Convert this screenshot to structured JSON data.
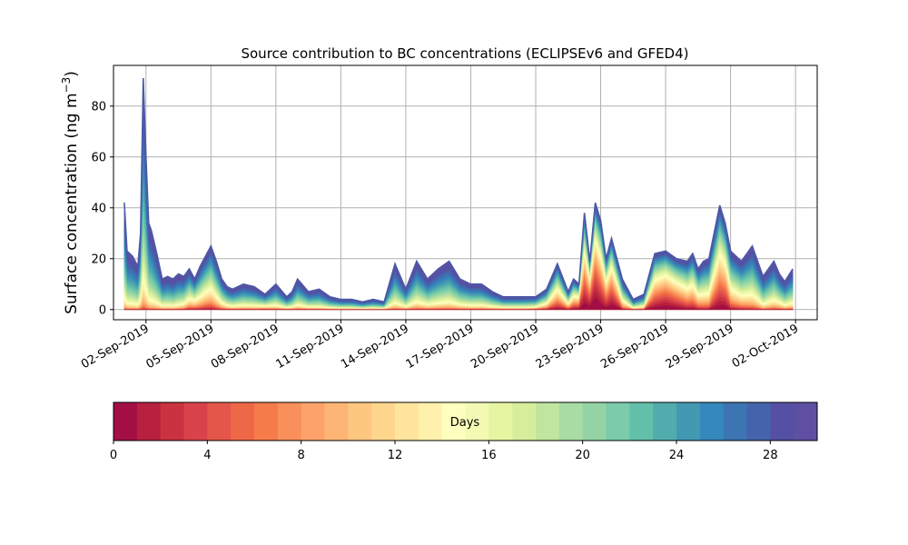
{
  "chart_data": {
    "type": "area",
    "title": "Source contribution to BC concentrations (ECLIPSEv6 and GFED4)",
    "ylabel_main": "Surface concentration (ng m",
    "ylabel_sup": "−3",
    "ylabel_close": ")",
    "ylim": [
      -4,
      96
    ],
    "yticks": [
      0,
      20,
      40,
      60,
      80
    ],
    "xlim": [
      "2019-08-31T12:00",
      "2019-10-03T00:00"
    ],
    "xticks": [
      {
        "date": "2019-09-02",
        "label": "02-Sep-2019"
      },
      {
        "date": "2019-09-05",
        "label": "05-Sep-2019"
      },
      {
        "date": "2019-09-08",
        "label": "08-Sep-2019"
      },
      {
        "date": "2019-09-11",
        "label": "11-Sep-2019"
      },
      {
        "date": "2019-09-14",
        "label": "14-Sep-2019"
      },
      {
        "date": "2019-09-17",
        "label": "17-Sep-2019"
      },
      {
        "date": "2019-09-20",
        "label": "20-Sep-2019"
      },
      {
        "date": "2019-09-23",
        "label": "23-Sep-2019"
      },
      {
        "date": "2019-09-26",
        "label": "26-Sep-2019"
      },
      {
        "date": "2019-09-29",
        "label": "29-Sep-2019"
      },
      {
        "date": "2019-10-02",
        "label": "02-Oct-2019"
      }
    ],
    "grid": true,
    "stack_layers": 30,
    "x": [
      "2019-09-01T00:00",
      "2019-09-01T03:00",
      "2019-09-01T09:00",
      "2019-09-01T15:00",
      "2019-09-01T18:00",
      "2019-09-01T21:00",
      "2019-09-02T00:00",
      "2019-09-02T03:00",
      "2019-09-02T06:00",
      "2019-09-02T12:00",
      "2019-09-02T18:00",
      "2019-09-03T00:00",
      "2019-09-03T06:00",
      "2019-09-03T12:00",
      "2019-09-03T18:00",
      "2019-09-04T00:00",
      "2019-09-04T06:00",
      "2019-09-04T12:00",
      "2019-09-04T18:00",
      "2019-09-05T00:00",
      "2019-09-05T06:00",
      "2019-09-05T12:00",
      "2019-09-05T18:00",
      "2019-09-06T00:00",
      "2019-09-06T12:00",
      "2019-09-07T00:00",
      "2019-09-07T12:00",
      "2019-09-08T00:00",
      "2019-09-08T12:00",
      "2019-09-08T18:00",
      "2019-09-09T00:00",
      "2019-09-09T12:00",
      "2019-09-10T00:00",
      "2019-09-10T12:00",
      "2019-09-11T00:00",
      "2019-09-11T12:00",
      "2019-09-12T00:00",
      "2019-09-12T12:00",
      "2019-09-13T00:00",
      "2019-09-13T12:00",
      "2019-09-14T00:00",
      "2019-09-14T12:00",
      "2019-09-15T00:00",
      "2019-09-15T12:00",
      "2019-09-16T00:00",
      "2019-09-16T12:00",
      "2019-09-17T00:00",
      "2019-09-17T12:00",
      "2019-09-18T00:00",
      "2019-09-18T12:00",
      "2019-09-19T00:00",
      "2019-09-19T12:00",
      "2019-09-20T00:00",
      "2019-09-20T12:00",
      "2019-09-21T00:00",
      "2019-09-21T12:00",
      "2019-09-21T18:00",
      "2019-09-22T00:00",
      "2019-09-22T06:00",
      "2019-09-22T12:00",
      "2019-09-22T18:00",
      "2019-09-23T00:00",
      "2019-09-23T06:00",
      "2019-09-23T12:00",
      "2019-09-24T00:00",
      "2019-09-24T12:00",
      "2019-09-25T00:00",
      "2019-09-25T12:00",
      "2019-09-26T00:00",
      "2019-09-26T12:00",
      "2019-09-27T00:00",
      "2019-09-27T06:00",
      "2019-09-27T12:00",
      "2019-09-27T18:00",
      "2019-09-28T00:00",
      "2019-09-28T12:00",
      "2019-09-28T18:00",
      "2019-09-29T00:00",
      "2019-09-29T12:00",
      "2019-09-30T00:00",
      "2019-09-30T12:00",
      "2019-10-01T00:00",
      "2019-10-01T06:00",
      "2019-10-01T12:00",
      "2019-10-01T21:00"
    ],
    "total": [
      42,
      23,
      21,
      17,
      30,
      91,
      60,
      34,
      31,
      22,
      12,
      13,
      12,
      14,
      13,
      16,
      12,
      17,
      21,
      25,
      19,
      12,
      9,
      8,
      10,
      9,
      6,
      10,
      5,
      7,
      12,
      7,
      8,
      5,
      4,
      4,
      3,
      4,
      3,
      18,
      8,
      19,
      12,
      16,
      19,
      12,
      10,
      10,
      7,
      5,
      5,
      5,
      5,
      8,
      18,
      7,
      12,
      10,
      38,
      19,
      42,
      35,
      20,
      28,
      12,
      4,
      6,
      22,
      23,
      20,
      19,
      22,
      16,
      19,
      20,
      41,
      34,
      23,
      19,
      25,
      13,
      19,
      14,
      11,
      16
    ],
    "fresh_fraction": [
      0.02,
      0.02,
      0.02,
      0.03,
      0.1,
      0.1,
      0.1,
      0.05,
      0.05,
      0.05,
      0.05,
      0.05,
      0.05,
      0.1,
      0.25,
      0.45,
      0.5,
      0.5,
      0.55,
      0.55,
      0.45,
      0.35,
      0.25,
      0.2,
      0.2,
      0.2,
      0.35,
      0.2,
      0.15,
      0.15,
      0.15,
      0.15,
      0.1,
      0.1,
      0.1,
      0.1,
      0.1,
      0.1,
      0.1,
      0.15,
      0.15,
      0.2,
      0.2,
      0.2,
      0.2,
      0.2,
      0.2,
      0.2,
      0.2,
      0.2,
      0.2,
      0.2,
      0.3,
      0.5,
      0.7,
      0.55,
      0.7,
      0.75,
      0.85,
      0.85,
      0.9,
      0.85,
      0.8,
      0.85,
      0.5,
      0.2,
      0.3,
      0.8,
      0.85,
      0.8,
      0.7,
      0.7,
      0.6,
      0.55,
      0.55,
      0.8,
      0.8,
      0.6,
      0.5,
      0.4,
      0.2,
      0.3,
      0.3,
      0.2,
      0.2
    ],
    "colorbar": {
      "label": "Days",
      "range": [
        0,
        30
      ],
      "ticks": [
        0,
        4,
        8,
        12,
        16,
        20,
        24,
        28
      ],
      "colors": [
        "#a30f45",
        "#b8203f",
        "#ca323f",
        "#d8434b",
        "#e45649",
        "#ee6747",
        "#f57c4a",
        "#f9905b",
        "#fca26a",
        "#fdb575",
        "#fec77f",
        "#fed68e",
        "#fee49c",
        "#fff1ab",
        "#fefebe",
        "#f3fab4",
        "#e6f5a2",
        "#d6ee9b",
        "#c0e59f",
        "#a9dca4",
        "#93d3a4",
        "#7accaa",
        "#62c0aa",
        "#52acad",
        "#4399b2",
        "#3588bc",
        "#3d74b2",
        "#4563ac",
        "#5550a4",
        "#5e4fa2"
      ]
    }
  }
}
